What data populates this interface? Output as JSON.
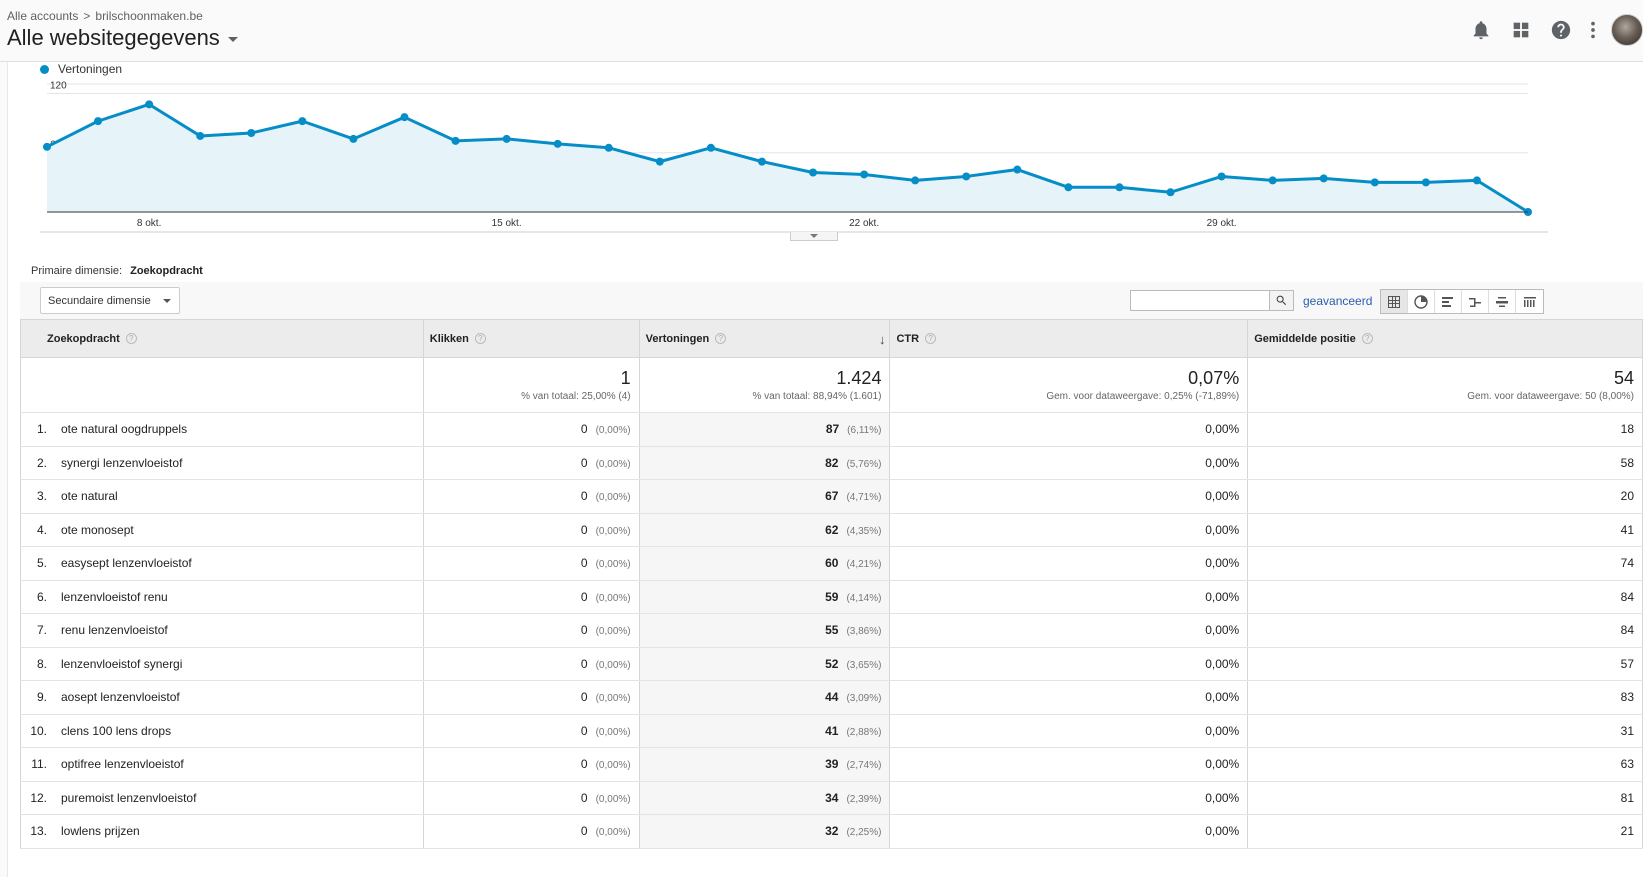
{
  "header": {
    "breadcrumb_root": "Alle accounts",
    "breadcrumb_separator": ">",
    "breadcrumb_property": "brilschoonmaken.be",
    "view_title": "Alle websitegegevens",
    "icons": [
      "bell-icon",
      "apps-grid-icon",
      "help-icon",
      "more-vert-icon"
    ]
  },
  "chart_data": {
    "type": "line",
    "series": [
      {
        "name": "Vertoningen",
        "color": "#058dc7",
        "values": [
          66,
          92,
          109,
          77,
          80,
          92,
          74,
          96,
          72,
          74,
          69,
          65,
          51,
          65,
          51,
          40,
          38,
          32,
          36,
          43,
          25,
          25,
          20,
          36,
          32,
          34,
          30,
          30,
          32,
          0
        ]
      }
    ],
    "x_tick_labels": [
      "8 okt.",
      "15 okt.",
      "22 okt.",
      "29 okt."
    ],
    "x_tick_indices": [
      2,
      9,
      16,
      23
    ],
    "y_tick_labels": [
      "120",
      "60"
    ],
    "y_ticks": [
      120,
      60
    ],
    "ylim": [
      0,
      120
    ],
    "grid": true
  },
  "primary_dimension": {
    "label": "Primaire dimensie:",
    "value": "Zoekopdracht"
  },
  "toolbar": {
    "secondary_dimension": "Secundaire dimensie",
    "search_value": "",
    "advanced_link": "geavanceerd"
  },
  "table": {
    "columns": {
      "query": "Zoekopdracht",
      "clicks": "Klikken",
      "impressions": "Vertoningen",
      "ctr": "CTR",
      "position": "Gemiddelde positie"
    },
    "totals": {
      "clicks": "1",
      "clicks_sub": "% van totaal: 25,00% (4)",
      "impressions": "1.424",
      "impressions_sub": "% van totaal: 88,94% (1.601)",
      "ctr": "0,07%",
      "ctr_sub": "Gem. voor dataweergave: 0,25% (-71,89%)",
      "position": "54",
      "position_sub": "Gem. voor dataweergave: 50 (8,00%)"
    },
    "rows": [
      {
        "rank": "1.",
        "query": "ote natural oogdruppels",
        "clicks": "0",
        "clicks_pct": "(0,00%)",
        "impr": "87",
        "impr_pct": "(6,11%)",
        "ctr": "0,00%",
        "pos": "18"
      },
      {
        "rank": "2.",
        "query": "synergi lenzenvloeistof",
        "clicks": "0",
        "clicks_pct": "(0,00%)",
        "impr": "82",
        "impr_pct": "(5,76%)",
        "ctr": "0,00%",
        "pos": "58"
      },
      {
        "rank": "3.",
        "query": "ote natural",
        "clicks": "0",
        "clicks_pct": "(0,00%)",
        "impr": "67",
        "impr_pct": "(4,71%)",
        "ctr": "0,00%",
        "pos": "20"
      },
      {
        "rank": "4.",
        "query": "ote monosept",
        "clicks": "0",
        "clicks_pct": "(0,00%)",
        "impr": "62",
        "impr_pct": "(4,35%)",
        "ctr": "0,00%",
        "pos": "41"
      },
      {
        "rank": "5.",
        "query": "easysept lenzenvloeistof",
        "clicks": "0",
        "clicks_pct": "(0,00%)",
        "impr": "60",
        "impr_pct": "(4,21%)",
        "ctr": "0,00%",
        "pos": "74"
      },
      {
        "rank": "6.",
        "query": "lenzenvloeistof renu",
        "clicks": "0",
        "clicks_pct": "(0,00%)",
        "impr": "59",
        "impr_pct": "(4,14%)",
        "ctr": "0,00%",
        "pos": "84"
      },
      {
        "rank": "7.",
        "query": "renu lenzenvloeistof",
        "clicks": "0",
        "clicks_pct": "(0,00%)",
        "impr": "55",
        "impr_pct": "(3,86%)",
        "ctr": "0,00%",
        "pos": "84"
      },
      {
        "rank": "8.",
        "query": "lenzenvloeistof synergi",
        "clicks": "0",
        "clicks_pct": "(0,00%)",
        "impr": "52",
        "impr_pct": "(3,65%)",
        "ctr": "0,00%",
        "pos": "57"
      },
      {
        "rank": "9.",
        "query": "aosept lenzenvloeistof",
        "clicks": "0",
        "clicks_pct": "(0,00%)",
        "impr": "44",
        "impr_pct": "(3,09%)",
        "ctr": "0,00%",
        "pos": "83"
      },
      {
        "rank": "10.",
        "query": "clens 100 lens drops",
        "clicks": "0",
        "clicks_pct": "(0,00%)",
        "impr": "41",
        "impr_pct": "(2,88%)",
        "ctr": "0,00%",
        "pos": "31"
      },
      {
        "rank": "11.",
        "query": "optifree lenzenvloeistof",
        "clicks": "0",
        "clicks_pct": "(0,00%)",
        "impr": "39",
        "impr_pct": "(2,74%)",
        "ctr": "0,00%",
        "pos": "63"
      },
      {
        "rank": "12.",
        "query": "puremoist lenzenvloeistof",
        "clicks": "0",
        "clicks_pct": "(0,00%)",
        "impr": "34",
        "impr_pct": "(2,39%)",
        "ctr": "0,00%",
        "pos": "81"
      },
      {
        "rank": "13.",
        "query": "lowlens prijzen",
        "clicks": "0",
        "clicks_pct": "(0,00%)",
        "impr": "32",
        "impr_pct": "(2,25%)",
        "ctr": "0,00%",
        "pos": "21"
      }
    ]
  }
}
